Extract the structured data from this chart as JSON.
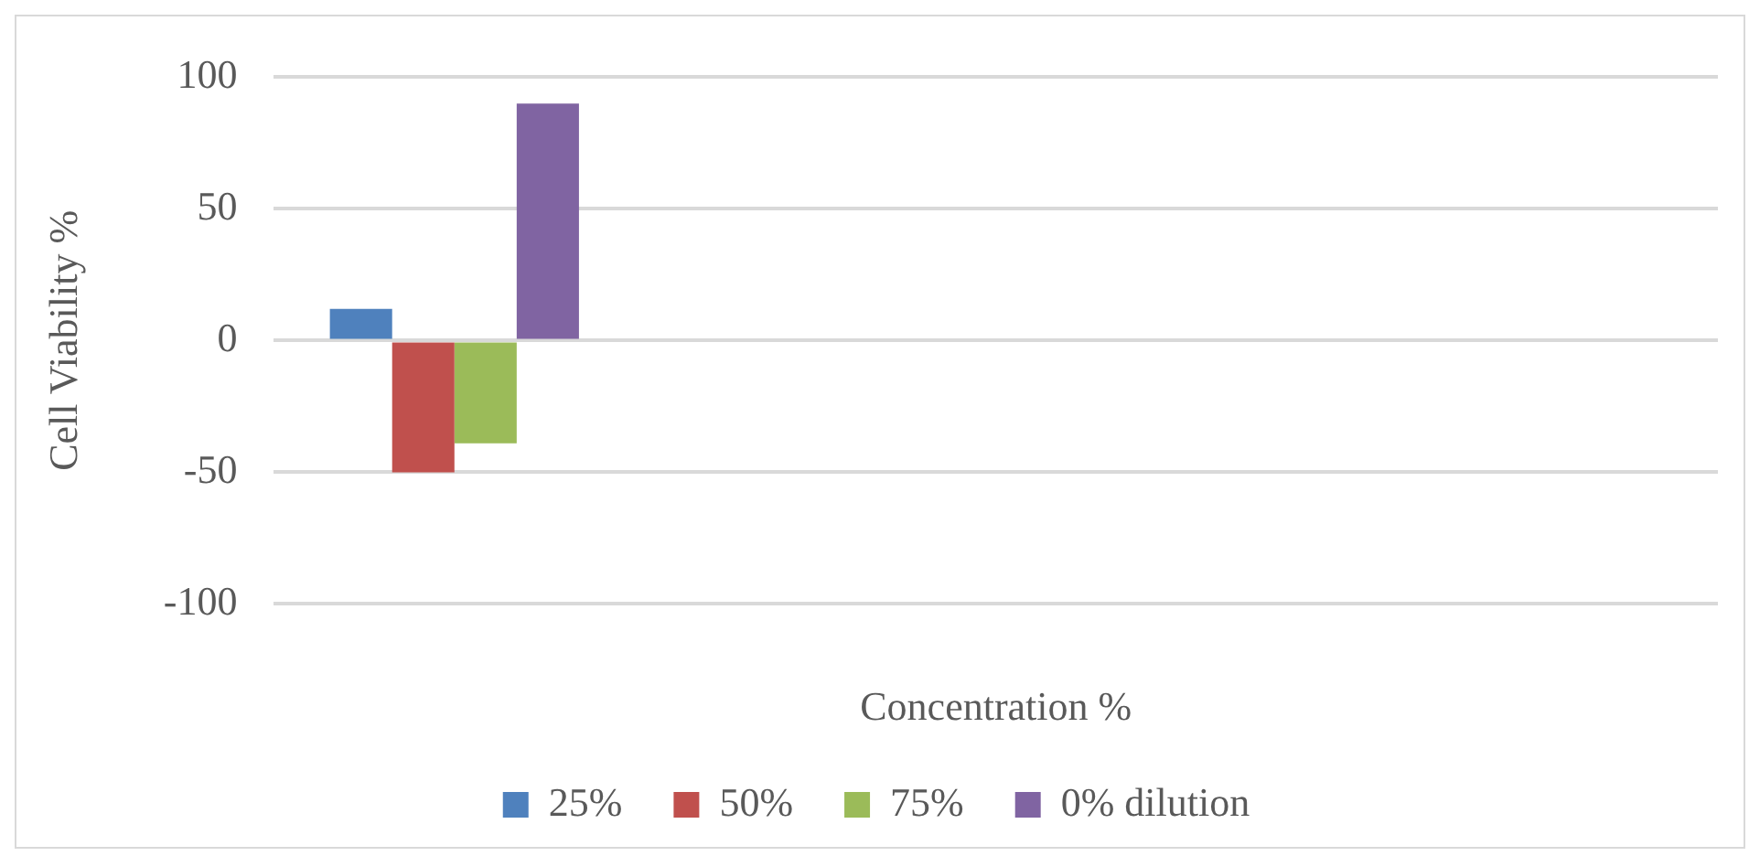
{
  "chart_data": {
    "type": "bar",
    "xlabel": "Concentration %",
    "ylabel": "Cell Viability %",
    "categories": [
      null,
      null,
      null,
      null
    ],
    "series": [
      {
        "name": "25%",
        "color": "#4f81bd",
        "values": [
          12,
          null,
          null,
          null
        ]
      },
      {
        "name": "50%",
        "color": "#c0504d",
        "values": [
          -50,
          null,
          null,
          null
        ]
      },
      {
        "name": "75%",
        "color": "#9bbb59",
        "values": [
          -39,
          null,
          null,
          null
        ]
      },
      {
        "name": "0% dilution",
        "color": "#8064a2",
        "values": [
          90,
          null,
          null,
          null
        ]
      }
    ],
    "ylim": [
      -100,
      100
    ],
    "yticks": [
      -100,
      -50,
      0,
      50,
      100
    ],
    "grid": "y",
    "legend": "bottom"
  }
}
